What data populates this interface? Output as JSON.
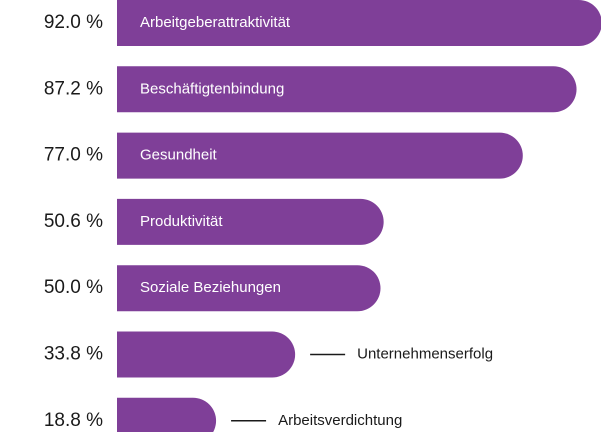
{
  "chart_data": {
    "type": "bar",
    "orientation": "horizontal",
    "categories": [
      "Arbeitgeberattraktivität",
      "Beschäftigtenbindung",
      "Gesundheit",
      "Produktivität",
      "Soziale Beziehungen",
      "Unternehmenserfolg",
      "Arbeitsverdichtung"
    ],
    "values": [
      92.0,
      87.2,
      77.0,
      50.6,
      50.0,
      33.8,
      18.8
    ],
    "value_labels": [
      "92.0 %",
      "87.2 %",
      "77.0 %",
      "50.6 %",
      "50.0 %",
      "33.8 %",
      "18.8 %"
    ],
    "color": "#7f3f98"
  }
}
